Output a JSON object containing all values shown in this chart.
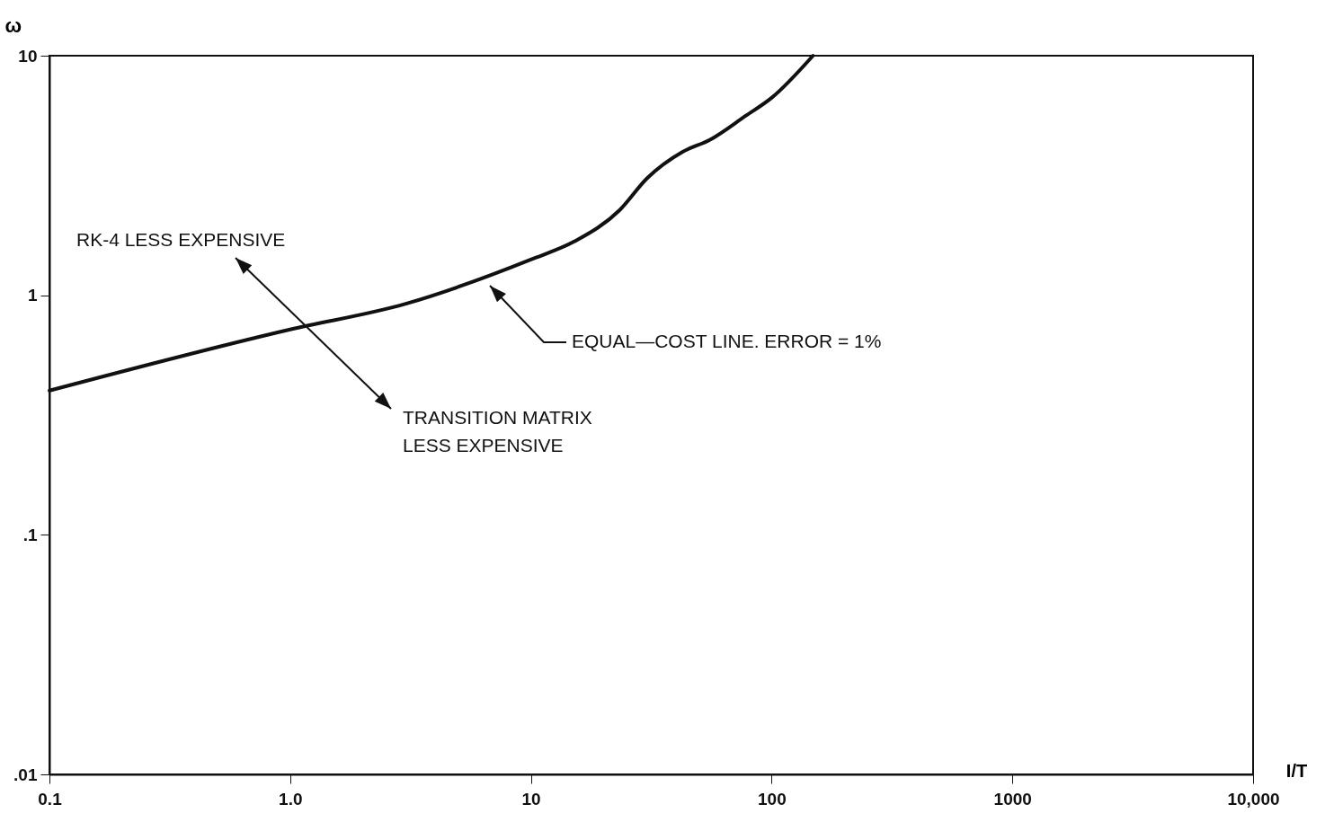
{
  "chart_data": {
    "type": "line",
    "xlabel": "I/T",
    "ylabel": "ω",
    "x": [
      0.1,
      1,
      3,
      10,
      15.2,
      23.4,
      30.3,
      42.7,
      55.3,
      78,
      100,
      148.5
    ],
    "series": [
      {
        "color": "#111111",
        "values": [
          0.4,
          0.72,
          0.92,
          1.41,
          1.68,
          2.27,
          3.07,
          3.97,
          4.45,
          5.61,
          6.67,
          10
        ]
      }
    ],
    "log": "xy",
    "xlim": [
      0.1,
      10000
    ],
    "ylim": [
      0.01,
      10
    ],
    "xticks": [
      0.1,
      {
        "value": 1,
        "label": "1.0"
      },
      10,
      100,
      1000,
      {
        "value": 10000,
        "label": "10,000"
      }
    ],
    "yticks": [
      {
        "value": 0.01,
        "label": ".01"
      },
      {
        "value": 0.1,
        "label": ".1"
      },
      1,
      10
    ],
    "grid": false,
    "marker": "none",
    "line_style": "solid",
    "annotations": [
      "RK-4 LESS EXPENSIVE",
      "TRANSITION MATRIX\nLESS EXPENSIVE",
      "EQUAL—COST LINE. ERROR = 1%"
    ]
  }
}
